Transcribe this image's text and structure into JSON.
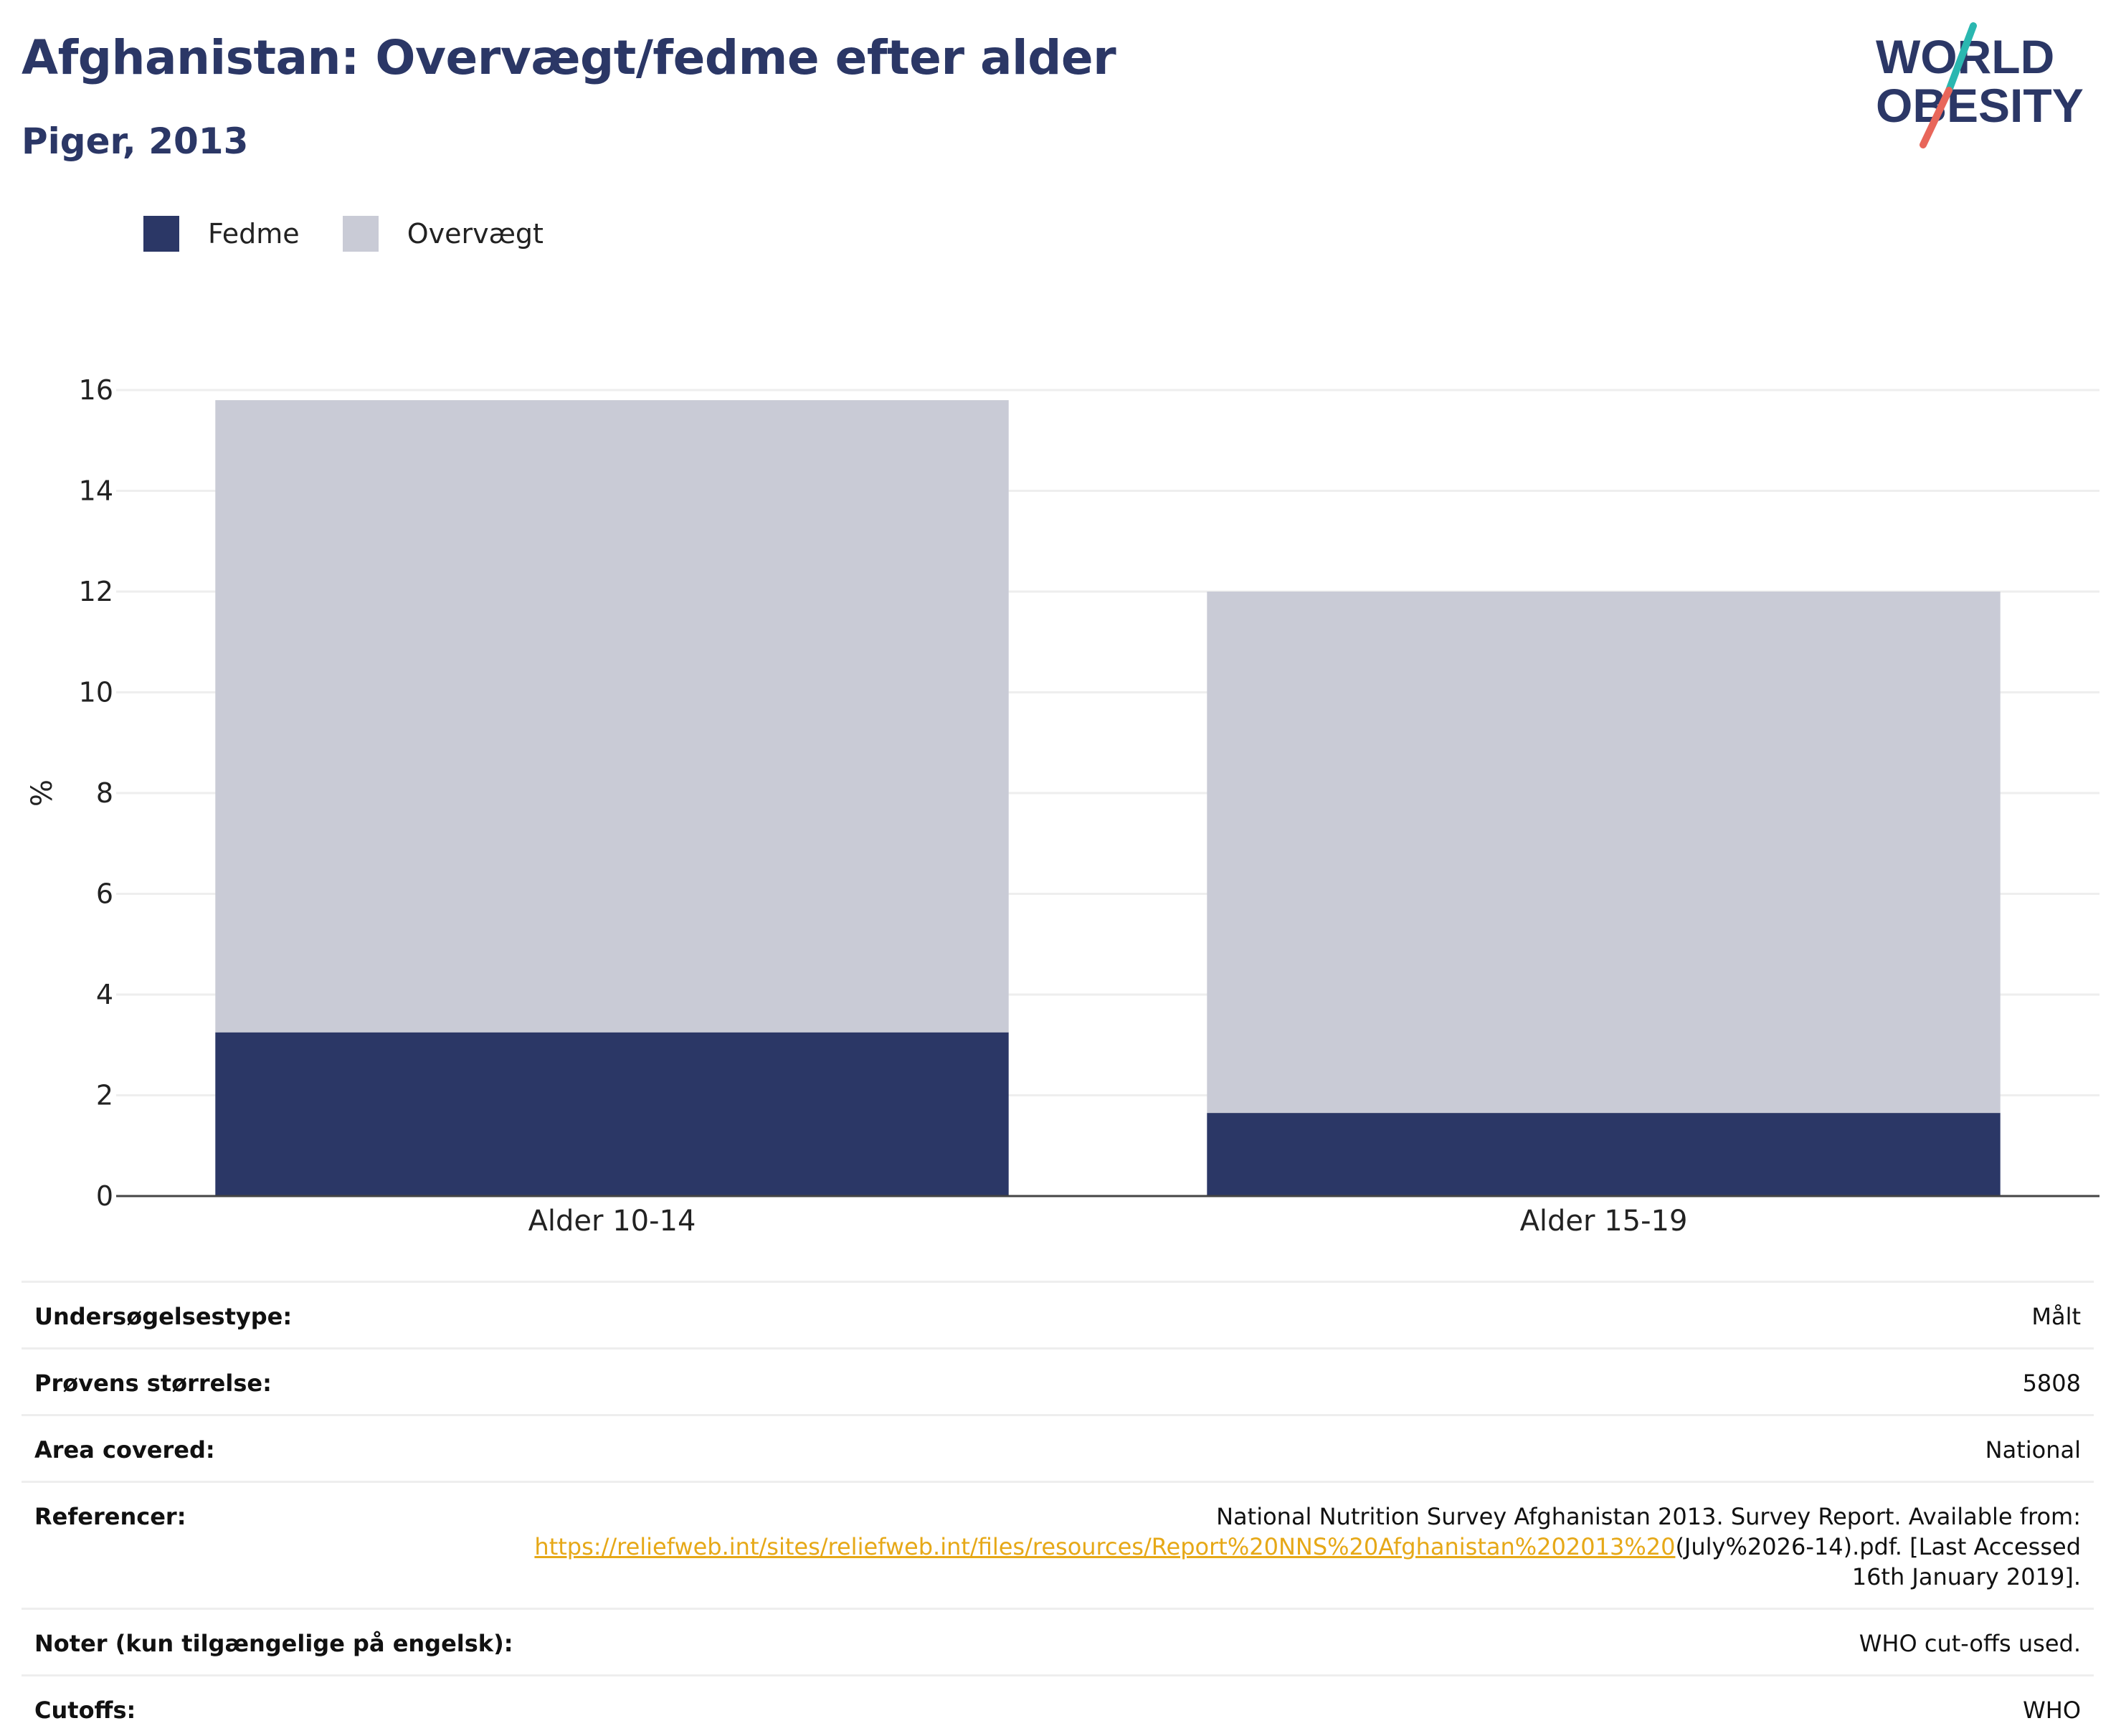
{
  "header": {
    "title": "Afghanistan: Overvægt/fedme efter alder",
    "subtitle": "Piger, 2013"
  },
  "logo": {
    "line1": "WORLD",
    "line2": "OBESITY",
    "colors": {
      "text": "#2b3766",
      "slash_top": "#2ab7b0",
      "slash_bottom": "#e8665a"
    }
  },
  "legend": [
    {
      "label": "Fedme",
      "color": "#2b3766"
    },
    {
      "label": "Overvægt",
      "color": "#c9cbd6"
    }
  ],
  "chart_data": {
    "type": "bar",
    "stacked": true,
    "categories": [
      "Alder 10-14",
      "Alder 15-19"
    ],
    "series": [
      {
        "name": "Fedme",
        "color": "#2b3766",
        "values": [
          3.25,
          1.65
        ]
      },
      {
        "name": "Overvægt",
        "color": "#c9cbd6",
        "values": [
          12.55,
          10.35
        ]
      }
    ],
    "ylabel": "%",
    "xlabel": "",
    "ylim": [
      0,
      16
    ],
    "yticks": [
      0,
      2,
      4,
      6,
      8,
      10,
      12,
      14,
      16
    ],
    "grid": true,
    "legend_position": "top-left"
  },
  "info": {
    "rows": [
      {
        "label": "Undersøgelsestype:",
        "value": "Målt"
      },
      {
        "label": "Prøvens størrelse:",
        "value": "5808"
      },
      {
        "label": "Area covered:",
        "value": "National"
      }
    ],
    "references": {
      "label": "Referencer:",
      "text_before": "National Nutrition Survey Afghanistan 2013. Survey Report. Available from:",
      "link": "https://reliefweb.int/sites/reliefweb.int/files/resources/Report%20NNS%20Afghanistan%202013%20",
      "text_after": "(July%2026-14).pdf. [Last Accessed 16th January 2019]."
    },
    "rows_after": [
      {
        "label": "Noter (kun tilgængelige på engelsk):",
        "value": "WHO cut-offs used."
      },
      {
        "label": "Cutoffs:",
        "value": "WHO"
      }
    ]
  }
}
